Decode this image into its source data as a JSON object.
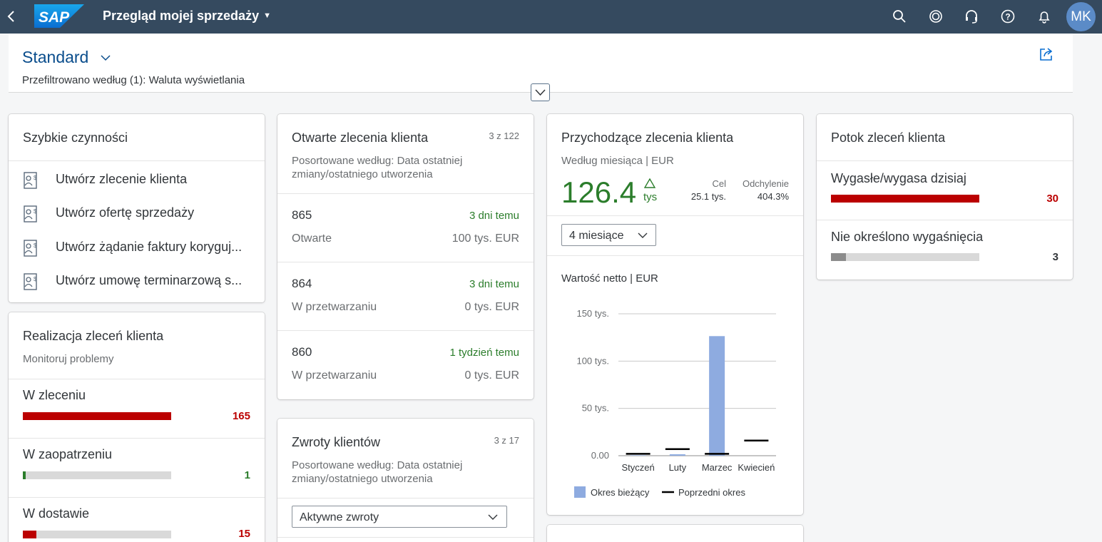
{
  "shell": {
    "logo_text": "SAP",
    "app_title": "Przegląd mojej sprzedaży",
    "avatar_initials": "MK"
  },
  "header": {
    "variant": "Standard",
    "prefilter": "Przefiltrowano według (1): Waluta wyświetlania"
  },
  "quick_actions": {
    "title": "Szybkie czynności",
    "items": [
      "Utwórz zlecenie klienta",
      "Utwórz ofertę sprzedaży",
      "Utwórz żądanie faktury koryguj...",
      "Utwórz umowę terminarzową s..."
    ]
  },
  "fulfillment": {
    "title": "Realizacja zleceń klienta",
    "subtitle": "Monitoruj problemy",
    "items": [
      {
        "label": "W zleceniu",
        "value": "165",
        "fill": 1.0,
        "color": "#bb0000"
      },
      {
        "label": "W zaopatrzeniu",
        "value": "1",
        "fill": 0.02,
        "color": "#2b7d2b"
      },
      {
        "label": "W dostawie",
        "value": "15",
        "fill": 0.09,
        "color": "#bb0000"
      }
    ]
  },
  "open_orders": {
    "title": "Otwarte zlecenia klienta",
    "count": "3 z 122",
    "subtitle": "Posortowane według: Data ostatniej zmiany/ostatniego utworzenia",
    "rows": [
      {
        "id": "865",
        "time": "3 dni temu",
        "status": "Otwarte",
        "amount": "100 tys. EUR"
      },
      {
        "id": "864",
        "time": "3 dni temu",
        "status": "W przetwarzaniu",
        "amount": "0 tys. EUR"
      },
      {
        "id": "860",
        "time": "1 tydzień temu",
        "status": "W przetwarzaniu",
        "amount": "0 tys. EUR"
      }
    ]
  },
  "returns": {
    "title": "Zwroty klientów",
    "count": "3 z 17",
    "subtitle": "Posortowane według: Data ostatniej zmiany/ostatniego utworzenia",
    "filter_value": "Aktywne zwroty"
  },
  "incoming": {
    "title": "Przychodzące zlecenia klienta",
    "subtitle": "Według miesiąca | EUR",
    "kpi_value": "126.4",
    "kpi_unit": "tys",
    "target_label": "Cel",
    "target_value": "25.1 tys.",
    "deviation_label": "Odchylenie",
    "deviation_value": "404.3%",
    "period_value": "4 miesiące",
    "chart_title": "Wartość netto | EUR",
    "colors": {
      "current": "#8eabe0",
      "previous": "#000000"
    }
  },
  "chart_data": {
    "type": "bar",
    "categories": [
      "Styczeń",
      "Luty",
      "Marzec",
      "Kwiecień"
    ],
    "ytick_labels": [
      "0.00",
      "50 tys.",
      "100 tys.",
      "150 tys."
    ],
    "yticks": [
      0,
      50,
      100,
      150
    ],
    "ylim": [
      0,
      150
    ],
    "series": [
      {
        "name": "Okres bieżący",
        "values": [
          0.5,
          1.5,
          126.4,
          0
        ]
      },
      {
        "name": "Poprzedni okres",
        "values": [
          2,
          7,
          2,
          16
        ]
      }
    ],
    "legend_position": "bottom"
  },
  "flow": {
    "title": "Potok zleceń klienta",
    "items": [
      {
        "label": "Wygasłe/wygasa dzisiaj",
        "value": "30",
        "fill": 1.0,
        "color": "#bb0000",
        "value_color": "#bb0000"
      },
      {
        "label": "Nie określono wygaśnięcia",
        "value": "3",
        "fill": 0.1,
        "color": "#8c8c8c",
        "value_color": "#32363a"
      }
    ]
  }
}
